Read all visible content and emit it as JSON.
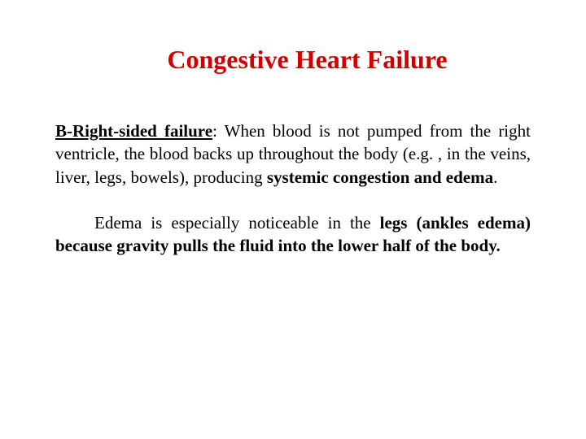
{
  "title": "Congestive Heart Failure",
  "para1_subtitle": "B-Right-sided failure",
  "para1_text1": ": When blood is not pumped from the right ventricle, the blood backs up throughout the body (e.g. , in the veins, liver, legs, bowels), producing ",
  "para1_bold1": "systemic congestion and edema",
  "para1_text2": ".",
  "para2_text1": "Edema is especially noticeable in the ",
  "para2_bold1": "legs (ankles edema) because gravity pulls the fluid into the lower half of the body.",
  "colors": {
    "title_color": "#d00000",
    "text_color": "#000000",
    "background_color": "#ffffff"
  },
  "typography": {
    "title_fontsize": 32,
    "body_fontsize": 21,
    "font_family": "Times New Roman"
  }
}
